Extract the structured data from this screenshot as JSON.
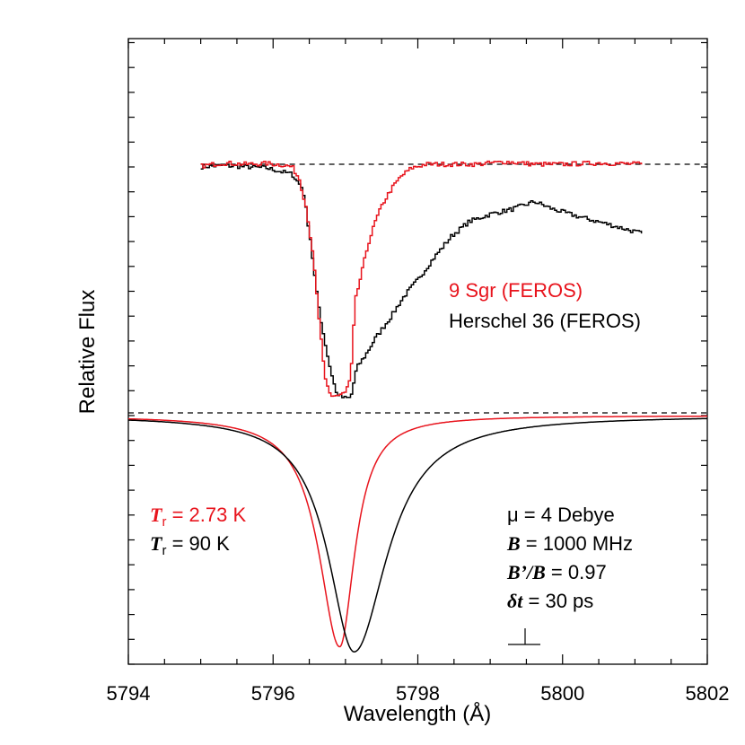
{
  "chart_data": {
    "type": "line",
    "xlabel": "Wavelength (Å)",
    "ylabel": "Relative Flux",
    "xlim": [
      5794,
      5802
    ],
    "x_ticks": [
      "5794",
      "5796",
      "5798",
      "5800",
      "5802"
    ],
    "grid": false,
    "colors": {
      "red": "#e8141d",
      "black": "#000000",
      "axis": "#000000"
    },
    "observed_labels": {
      "red": "9 Sgr (FEROS)",
      "black": "Herschel 36 (FEROS)"
    },
    "model_labels": {
      "red": {
        "symbol": "T",
        "subscript": "r",
        "value": " = 2.73 K"
      },
      "black": {
        "symbol": "T",
        "subscript": "r",
        "value": " = 90 K"
      }
    },
    "parameters": [
      {
        "symbol": "μ",
        "text": " = 4 Debye"
      },
      {
        "symbol": "B",
        "text": " = 1000 MHz"
      },
      {
        "symbol": "B’/B",
        "text": " = 0.97"
      },
      {
        "symbol": "δt",
        "text": " = 30  ps"
      }
    ],
    "observed_series": [
      {
        "name": "9 Sgr (FEROS)",
        "color": "#e8141d",
        "x": [
          5795.0,
          5795.3,
          5795.6,
          5795.9,
          5796.1,
          5796.25,
          5796.35,
          5796.45,
          5796.55,
          5796.62,
          5796.7,
          5796.78,
          5796.88,
          5796.98,
          5797.06,
          5797.12,
          5797.2,
          5797.3,
          5797.4,
          5797.5,
          5797.62,
          5797.75,
          5797.9,
          5798.1,
          5798.4,
          5798.8,
          5799.2,
          5799.6,
          5800.0,
          5800.5,
          5801.1
        ],
        "y": [
          0.993,
          1.005,
          1.0,
          1.003,
          0.998,
          0.99,
          0.94,
          0.82,
          0.6,
          0.38,
          0.14,
          0.07,
          0.07,
          0.08,
          0.14,
          0.45,
          0.55,
          0.68,
          0.77,
          0.84,
          0.9,
          0.95,
          0.985,
          1.0,
          1.0,
          1.0,
          1.01,
          1.0,
          1.0,
          1.005,
          1.0
        ]
      },
      {
        "name": "Herschel 36 (FEROS)",
        "color": "#000000",
        "x": [
          5795.0,
          5795.3,
          5795.6,
          5795.9,
          5796.1,
          5796.25,
          5796.4,
          5796.5,
          5796.58,
          5796.66,
          5796.76,
          5796.86,
          5796.96,
          5797.06,
          5797.14,
          5797.26,
          5797.4,
          5797.6,
          5797.8,
          5798.0,
          5798.2,
          5798.45,
          5798.7,
          5799.0,
          5799.3,
          5799.6,
          5799.85,
          5800.2,
          5800.6,
          5801.1
        ],
        "y": [
          0.99,
          0.995,
          0.99,
          0.985,
          0.97,
          0.96,
          0.9,
          0.7,
          0.5,
          0.35,
          0.2,
          0.08,
          0.06,
          0.06,
          0.18,
          0.23,
          0.3,
          0.38,
          0.47,
          0.54,
          0.62,
          0.71,
          0.77,
          0.8,
          0.82,
          0.85,
          0.82,
          0.79,
          0.76,
          0.72
        ]
      }
    ],
    "model_series": [
      {
        "name": "T_r = 2.73 K",
        "color": "#e8141d",
        "center": 5796.92,
        "gamma_left": 0.44,
        "gamma_right": 0.32,
        "depth": 0.92
      },
      {
        "name": "T_r = 90 K",
        "color": "#000000",
        "center": 5797.12,
        "gamma_left": 0.55,
        "gamma_right": 0.7,
        "depth": 0.94
      }
    ]
  }
}
